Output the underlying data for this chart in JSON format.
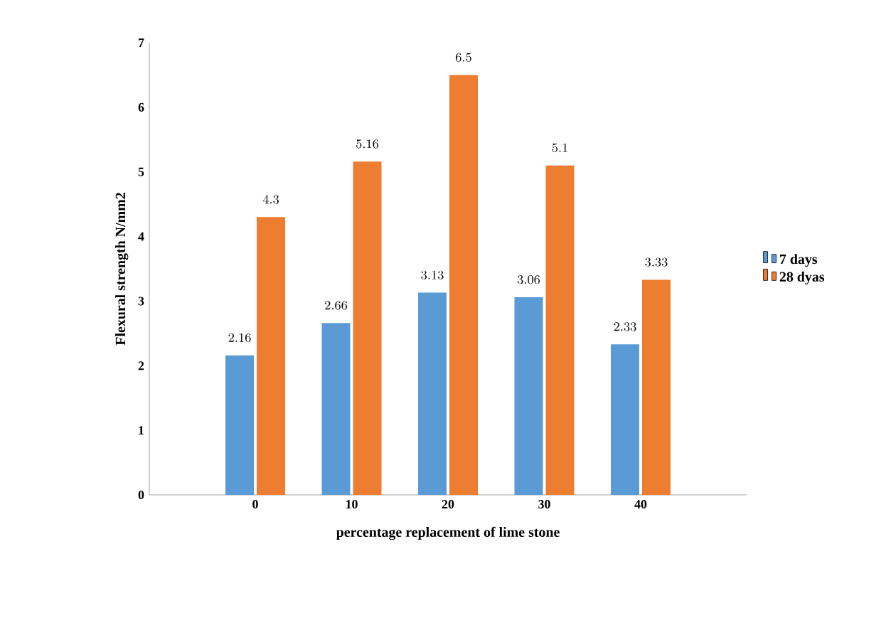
{
  "chart_data": {
    "type": "bar",
    "xlabel": "percentage replacement of lime stone",
    "ylabel": "Flexural strength N/mm2",
    "categories": [
      "0",
      "10",
      "20",
      "30",
      "40"
    ],
    "series": [
      {
        "name": "7 days",
        "color": "#5b9bd5",
        "values": [
          2.16,
          2.66,
          3.13,
          3.06,
          2.33
        ]
      },
      {
        "name": "28 dyas",
        "color": "#ed7d31",
        "values": [
          4.3,
          5.16,
          6.5,
          5.1,
          3.33
        ]
      }
    ],
    "ylim": [
      0,
      7
    ],
    "yticks": [
      0,
      1,
      2,
      3,
      4,
      5,
      6,
      7
    ],
    "grid": false,
    "legend": "right",
    "data_labels": true
  }
}
